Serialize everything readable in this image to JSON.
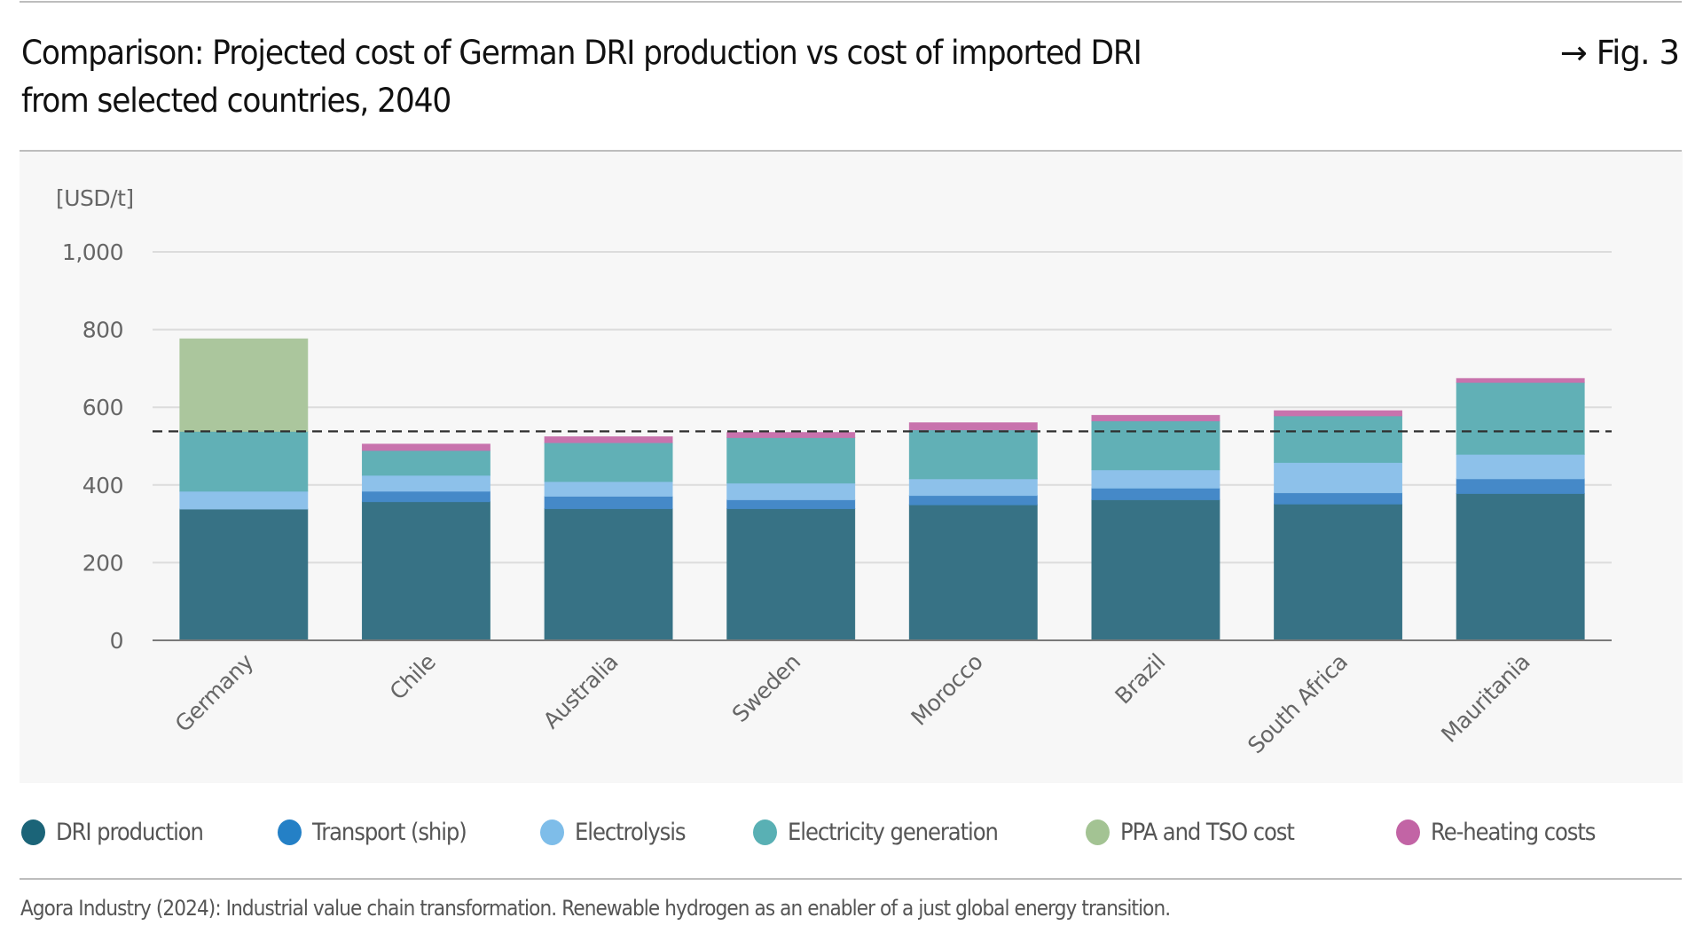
{
  "header": {
    "title_line1": "Comparison: Projected cost of German DRI production vs cost of imported DRI",
    "title_line2": "from selected countries, 2040",
    "figure_ref": "→ Fig. 3"
  },
  "source": "Agora Industry (2024): Industrial value chain transformation. Renewable hydrogen as an enabler of a just global energy transition.",
  "legend": [
    {
      "label": "DRI production",
      "color": "#1b6478"
    },
    {
      "label": "Transport (ship)",
      "color": "#2480c6"
    },
    {
      "label": "Electrolysis",
      "color": "#7ebde9"
    },
    {
      "label": "Electricity generation",
      "color": "#59b0b4"
    },
    {
      "label": "PPA and TSO cost",
      "color": "#a3c393"
    },
    {
      "label": "Re-heating costs",
      "color": "#c264a5"
    }
  ],
  "chart_data": {
    "type": "bar",
    "stacked": true,
    "title": "Comparison: Projected cost of German DRI production vs cost of imported DRI from selected countries, 2040",
    "xlabel": "",
    "ylabel": "[USD/t]",
    "ylim": [
      0,
      1000
    ],
    "yticks": [
      0,
      200,
      400,
      600,
      800,
      1000
    ],
    "ytick_labels": [
      "0",
      "200",
      "400",
      "600",
      "800",
      "1,000"
    ],
    "grid": true,
    "legend_position": "bottom",
    "categories": [
      "Germany",
      "Chile",
      "Australia",
      "Sweden",
      "Morocco",
      "Brazil",
      "South Africa",
      "Mauritania"
    ],
    "series": [
      {
        "name": "DRI production",
        "color": "#377285",
        "values": [
          338,
          357,
          339,
          339,
          349,
          362,
          351,
          378
        ]
      },
      {
        "name": "Transport (ship)",
        "color": "#4589c8",
        "values": [
          0,
          27,
          32,
          23,
          24,
          30,
          29,
          38
        ]
      },
      {
        "name": "Electrolysis",
        "color": "#8dc1ea",
        "values": [
          46,
          41,
          38,
          43,
          43,
          47,
          78,
          63
        ]
      },
      {
        "name": "Electricity generation",
        "color": "#61b0b6",
        "values": [
          154,
          64,
          100,
          117,
          126,
          126,
          120,
          185
        ]
      },
      {
        "name": "PPA and TSO cost",
        "color": "#abc69d",
        "values": [
          238,
          0,
          0,
          0,
          0,
          0,
          0,
          0
        ]
      },
      {
        "name": "Re-heating costs",
        "color": "#c873ad",
        "values": [
          0,
          16,
          15,
          13,
          18,
          14,
          13,
          10
        ]
      }
    ],
    "reference_line": {
      "value": 538,
      "style": "dashed",
      "meaning": "German DRI production cost excluding PPA and TSO cost"
    }
  }
}
